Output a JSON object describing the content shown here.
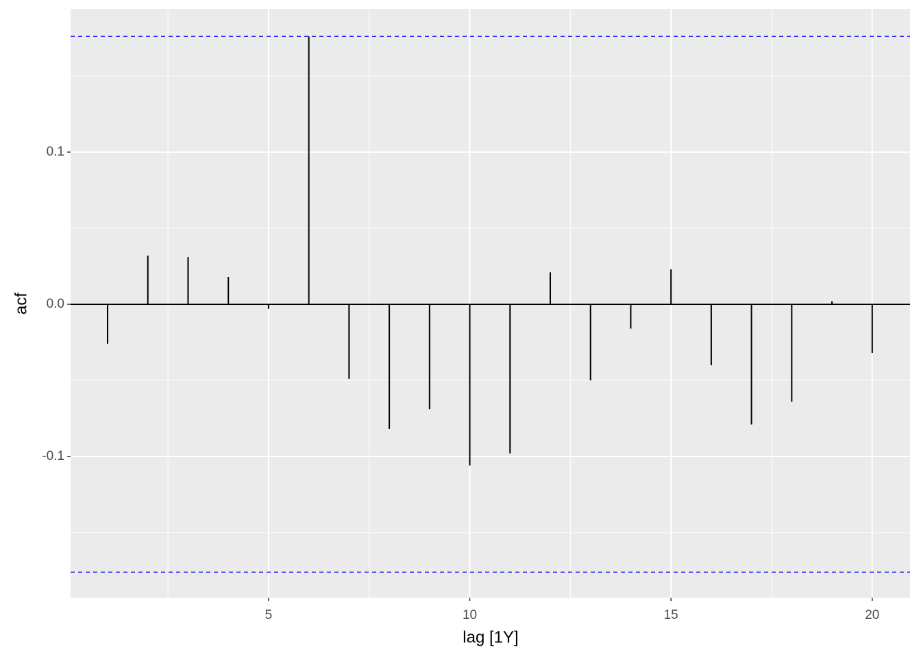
{
  "chart_data": {
    "type": "acf",
    "x_label": "lag [1Y]",
    "y_label": "acf",
    "x": [
      1,
      2,
      3,
      4,
      5,
      6,
      7,
      8,
      9,
      10,
      11,
      12,
      13,
      14,
      15,
      16,
      17,
      18,
      19,
      20
    ],
    "values": [
      -0.026,
      0.032,
      0.031,
      0.018,
      -0.003,
      0.176,
      -0.049,
      -0.082,
      -0.069,
      -0.106,
      -0.098,
      0.021,
      -0.05,
      -0.016,
      0.023,
      -0.04,
      -0.079,
      -0.064,
      0.002,
      -0.032
    ],
    "color": "#000000",
    "ci": [
      -0.176,
      0.176
    ],
    "ci_color": "#0000ff",
    "xlim": [
      0.08,
      20.94
    ],
    "ylim": [
      -0.1928,
      0.1941
    ],
    "xticks": [
      5,
      10,
      15,
      20
    ],
    "yticks": [
      -0.1,
      {
        "value": 0,
        "label": "0.0"
      },
      0.1
    ],
    "grid": true
  }
}
